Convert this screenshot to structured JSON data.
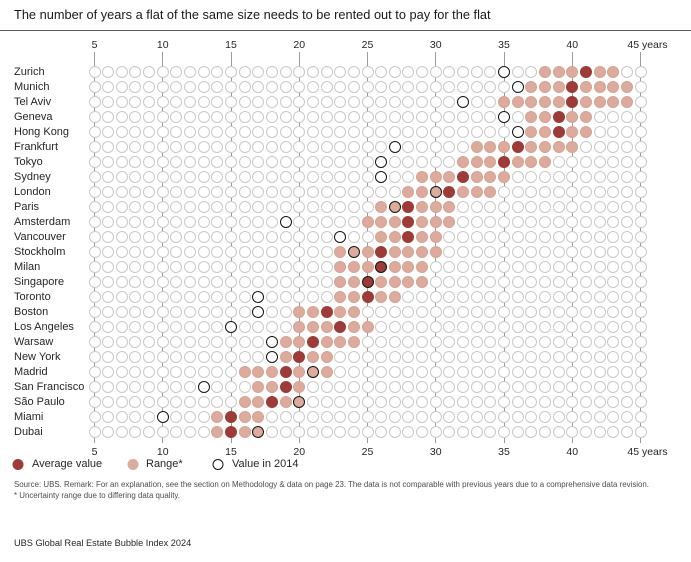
{
  "title": "The number of years a flat of the same size needs to be rented out to pay for the flat",
  "axis": {
    "ticks": [
      5,
      10,
      15,
      20,
      25,
      30,
      35,
      40,
      45
    ],
    "unit_label": "years"
  },
  "legend": {
    "average_label": "Average value",
    "range_label": "Range*",
    "value_2014_label": "Value in 2014"
  },
  "colors": {
    "average": "#9c3b38",
    "range": "#dcab9e",
    "empty_ring": "#c9c9c9",
    "value_2014_ring": "#141414",
    "gridline": "#9b9b9b"
  },
  "chart_data": {
    "type": "dot-range",
    "title": "The number of years a flat of the same size needs to be rented out to pay for the flat",
    "unit": "years",
    "xmin": 5,
    "xmax": 45,
    "legend_position": "bottom",
    "cities": [
      {
        "name": "Zurich",
        "range_min": 38,
        "range_max": 43,
        "average": 41,
        "value_2014": 35
      },
      {
        "name": "Munich",
        "range_min": 37,
        "range_max": 44,
        "average": 40,
        "value_2014": 36
      },
      {
        "name": "Tel Aviv",
        "range_min": 35,
        "range_max": 44,
        "average": 40,
        "value_2014": 32
      },
      {
        "name": "Geneva",
        "range_min": 37,
        "range_max": 41,
        "average": 39,
        "value_2014": 35
      },
      {
        "name": "Hong Kong",
        "range_min": 37,
        "range_max": 41,
        "average": 39,
        "value_2014": 36
      },
      {
        "name": "Frankfurt",
        "range_min": 33,
        "range_max": 40,
        "average": 36,
        "value_2014": 27
      },
      {
        "name": "Tokyo",
        "range_min": 32,
        "range_max": 38,
        "average": 35,
        "value_2014": 26
      },
      {
        "name": "Sydney",
        "range_min": 29,
        "range_max": 35,
        "average": 32,
        "value_2014": 26
      },
      {
        "name": "London",
        "range_min": 28,
        "range_max": 34,
        "average": 31,
        "value_2014": 30
      },
      {
        "name": "Paris",
        "range_min": 26,
        "range_max": 31,
        "average": 28,
        "value_2014": 27
      },
      {
        "name": "Amsterdam",
        "range_min": 25,
        "range_max": 31,
        "average": 28,
        "value_2014": 19
      },
      {
        "name": "Vancouver",
        "range_min": 26,
        "range_max": 30,
        "average": 28,
        "value_2014": 23
      },
      {
        "name": "Stockholm",
        "range_min": 23,
        "range_max": 30,
        "average": 26,
        "value_2014": 24
      },
      {
        "name": "Milan",
        "range_min": 23,
        "range_max": 29,
        "average": 26,
        "value_2014": 26
      },
      {
        "name": "Singapore",
        "range_min": 23,
        "range_max": 29,
        "average": 25,
        "value_2014": 25
      },
      {
        "name": "Toronto",
        "range_min": 23,
        "range_max": 27,
        "average": 25,
        "value_2014": 17
      },
      {
        "name": "Boston",
        "range_min": 20,
        "range_max": 24,
        "average": 22,
        "value_2014": 17
      },
      {
        "name": "Los Angeles",
        "range_min": 20,
        "range_max": 25,
        "average": 23,
        "value_2014": 15
      },
      {
        "name": "Warsaw",
        "range_min": 19,
        "range_max": 24,
        "average": 21,
        "value_2014": 18
      },
      {
        "name": "New York",
        "range_min": 19,
        "range_max": 22,
        "average": 20,
        "value_2014": 18
      },
      {
        "name": "Madrid",
        "range_min": 16,
        "range_max": 22,
        "average": 19,
        "value_2014": 21
      },
      {
        "name": "San Francisco",
        "range_min": 17,
        "range_max": 20,
        "average": 19,
        "value_2014": 13
      },
      {
        "name": "São Paulo",
        "range_min": 16,
        "range_max": 20,
        "average": 18,
        "value_2014": 20
      },
      {
        "name": "Miami",
        "range_min": 14,
        "range_max": 17,
        "average": 15,
        "value_2014": 10
      },
      {
        "name": "Dubai",
        "range_min": 14,
        "range_max": 17,
        "average": 15,
        "value_2014": 17
      }
    ]
  },
  "source_line1": "Source: UBS. Remark: For an explanation, see the section on Methodology & data on page 23. The data is not comparable with previous years due to a comprehensive data revision.",
  "source_line2": "* Uncertainty range due to differing data quality.",
  "footer": "UBS Global Real Estate Bubble Index 2024"
}
